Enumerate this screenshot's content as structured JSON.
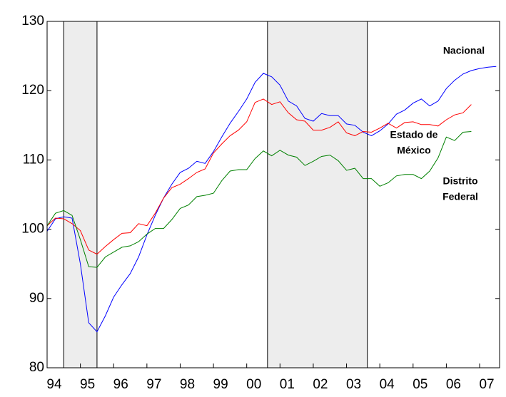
{
  "chart_data": {
    "type": "line",
    "x": [
      1994,
      1994.25,
      1994.5,
      1994.75,
      1995,
      1995.25,
      1995.5,
      1995.75,
      1996,
      1996.25,
      1996.5,
      1996.75,
      1997,
      1997.25,
      1997.5,
      1997.75,
      1998,
      1998.25,
      1998.5,
      1998.75,
      1999,
      1999.25,
      1999.5,
      1999.75,
      2000,
      2000.25,
      2000.5,
      2000.75,
      2001,
      2001.25,
      2001.5,
      2001.75,
      2002,
      2002.25,
      2002.5,
      2002.75,
      2003,
      2003.25,
      2003.5,
      2003.75,
      2004,
      2004.25,
      2004.5,
      2004.75,
      2005,
      2005.25,
      2005.5,
      2005.75,
      2006,
      2006.25,
      2006.5,
      2006.75,
      2007,
      2007.25,
      2007.5
    ],
    "series": [
      {
        "name": "Nacional",
        "color": "#0000ff",
        "values": [
          99.7,
          101.5,
          101.8,
          101.6,
          95,
          86.5,
          85.2,
          87.5,
          90.2,
          92,
          93.6,
          96,
          99.2,
          102,
          104.5,
          106.5,
          108.2,
          108.8,
          109.8,
          109.5,
          111.2,
          113.3,
          115.3,
          117,
          118.8,
          121.2,
          122.5,
          122,
          120.8,
          118.5,
          117.8,
          116,
          115.6,
          116.7,
          116.4,
          116.4,
          115.2,
          115,
          114,
          113.5,
          114.2,
          115.2,
          116.6,
          117.2,
          118.2,
          118.8,
          117.8,
          118.5,
          120.3,
          121.5,
          122.4,
          122.9,
          123.2,
          123.4,
          123.5
        ]
      },
      {
        "name": "Estado de México",
        "color": "#ff0000",
        "values": [
          100.5,
          101.6,
          101.5,
          100.8,
          99.8,
          97,
          96.4,
          97.5,
          98.5,
          99.4,
          99.5,
          100.8,
          100.5,
          102.3,
          104.5,
          106,
          106.5,
          107.3,
          108.2,
          108.7,
          111,
          112.3,
          113.5,
          114.3,
          115.5,
          118.3,
          118.8,
          118,
          118.4,
          116.8,
          115.8,
          115.6,
          114.3,
          114.3,
          114.7,
          115.5,
          113.9,
          113.5,
          114.1,
          114,
          114.6,
          115.3,
          114.6,
          115.4,
          115.5,
          115.1,
          115.1,
          114.9,
          115.8,
          116.5,
          116.8,
          118,
          null,
          null,
          null
        ]
      },
      {
        "name": "Distrito Federal",
        "color": "#008000",
        "values": [
          100.5,
          102.3,
          102.7,
          102,
          98.5,
          94.6,
          94.5,
          96,
          96.7,
          97.4,
          97.6,
          98.2,
          99.3,
          100.1,
          100.1,
          101.4,
          103,
          103.5,
          104.7,
          104.9,
          105.2,
          107,
          108.4,
          108.6,
          108.6,
          110.2,
          111.3,
          110.6,
          111.4,
          110.7,
          110.4,
          109.2,
          109.8,
          110.5,
          110.7,
          109.9,
          108.5,
          108.8,
          107.3,
          107.3,
          106.2,
          106.7,
          107.7,
          107.9,
          107.9,
          107.3,
          108.4,
          110.3,
          113.3,
          112.8,
          114,
          114.1,
          null,
          null,
          null
        ]
      }
    ],
    "annotations": [
      [
        "Nacional"
      ],
      [
        "Estado de",
        "México"
      ],
      [
        "Distrito",
        "Federal"
      ]
    ],
    "shaded_regions": [
      [
        1994.5,
        1995.5
      ],
      [
        2000.625,
        2003.625
      ]
    ],
    "shade_color": "#ededed",
    "xlim": [
      1994,
      2007.6
    ],
    "xticks": [
      {
        "value": 1994,
        "label": "94"
      },
      {
        "value": 1995,
        "label": "95"
      },
      {
        "value": 1996,
        "label": "96"
      },
      {
        "value": 1997,
        "label": "97"
      },
      {
        "value": 1998,
        "label": "98"
      },
      {
        "value": 1999,
        "label": "99"
      },
      {
        "value": 2000,
        "label": "00"
      },
      {
        "value": 2001,
        "label": "01"
      },
      {
        "value": 2002,
        "label": "02"
      },
      {
        "value": 2003,
        "label": "03"
      },
      {
        "value": 2004,
        "label": "04"
      },
      {
        "value": 2005,
        "label": "05"
      },
      {
        "value": 2006,
        "label": "06"
      },
      {
        "value": 2007,
        "label": "07"
      }
    ],
    "ylim": [
      80,
      130
    ],
    "yticks": [
      80,
      90,
      100,
      110,
      120,
      130
    ]
  }
}
